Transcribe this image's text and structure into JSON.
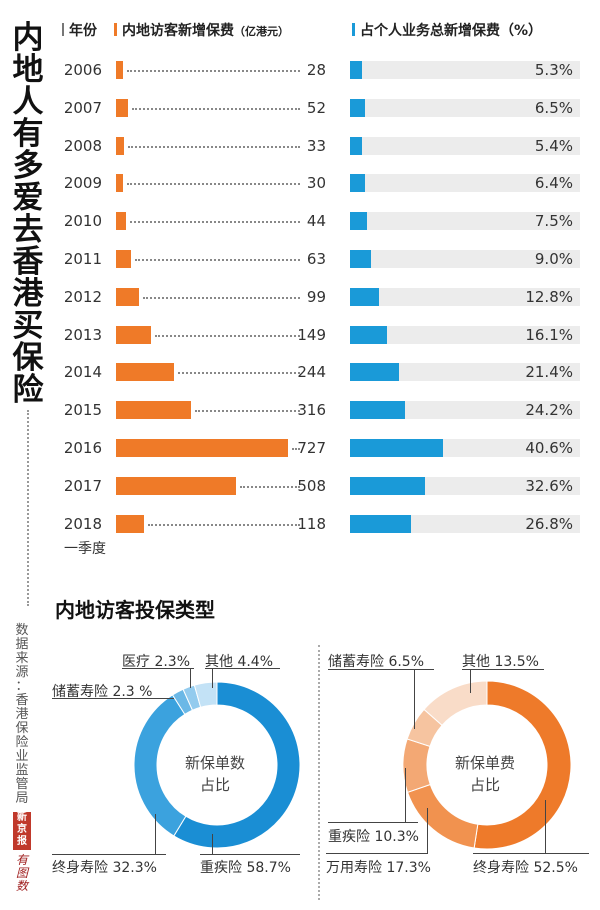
{
  "title": "内地人有多爱去香港买保险",
  "header": {
    "year_label": "年份",
    "premium_label": "内地访客新增保费",
    "premium_unit": "（亿港元）",
    "share_label": "占个人业务总新增保费（%）"
  },
  "colors": {
    "orange": "#ef7a28",
    "blue": "#1a9ad8",
    "track": "#ececec"
  },
  "chart_data": [
    {
      "type": "bar",
      "orientation": "horizontal",
      "categories": [
        "2006",
        "2007",
        "2008",
        "2009",
        "2010",
        "2011",
        "2012",
        "2013",
        "2014",
        "2015",
        "2016",
        "2017",
        "2018"
      ],
      "category_note": "一季度",
      "title": "内地访客新增保费（亿港元）",
      "values": [
        28,
        52,
        33,
        30,
        44,
        63,
        99,
        149,
        244,
        316,
        727,
        508,
        118
      ],
      "value_labels": [
        "28",
        "52",
        "33",
        "30",
        "44",
        "63",
        "99",
        "149",
        "244",
        "316",
        "727",
        "508",
        "118"
      ],
      "color": "#ef7a28"
    },
    {
      "type": "bar",
      "orientation": "horizontal",
      "categories": [
        "2006",
        "2007",
        "2008",
        "2009",
        "2010",
        "2011",
        "2012",
        "2013",
        "2014",
        "2015",
        "2016",
        "2017",
        "2018"
      ],
      "title": "占个人业务总新增保费（%）",
      "values": [
        5.3,
        6.5,
        5.4,
        6.4,
        7.5,
        9.0,
        12.8,
        16.1,
        21.4,
        24.2,
        40.6,
        32.6,
        26.8
      ],
      "value_labels": [
        "5.3%",
        "6.5%",
        "5.4%",
        "6.4%",
        "7.5%",
        "9.0%",
        "12.8%",
        "16.1%",
        "21.4%",
        "24.2%",
        "40.6%",
        "32.6%",
        "26.8%"
      ],
      "xlim": [
        0,
        100
      ],
      "color": "#1a9ad8"
    },
    {
      "type": "pie",
      "title": "新保单数占比",
      "title_lines": [
        "新保单数",
        "占比"
      ],
      "slices": [
        {
          "name": "重疾险",
          "value": 58.7,
          "label": "重疾险 58.7%",
          "color": "#1a8ed4"
        },
        {
          "name": "终身寿险",
          "value": 32.3,
          "label": "终身寿险 32.3%",
          "color": "#3ba2de"
        },
        {
          "name": "储蓄寿险",
          "value": 2.3,
          "label": "储蓄寿险 2.3 %",
          "color": "#6bb8e6"
        },
        {
          "name": "医疗",
          "value": 2.3,
          "label": "医疗 2.3%",
          "color": "#93cbee"
        },
        {
          "name": "其他",
          "value": 4.4,
          "label": "其他 4.4%",
          "color": "#c3e2f6"
        }
      ]
    },
    {
      "type": "pie",
      "title": "新保单费占比",
      "title_lines": [
        "新保单费",
        "占比"
      ],
      "slices": [
        {
          "name": "终身寿险",
          "value": 52.5,
          "label": "终身寿险 52.5%",
          "color": "#ee7a2a"
        },
        {
          "name": "万用寿险",
          "value": 17.3,
          "label": "万用寿险 17.3%",
          "color": "#f1924f"
        },
        {
          "name": "重疾险",
          "value": 10.3,
          "label": "重疾险 10.3%",
          "color": "#f3a874"
        },
        {
          "name": "储蓄寿险",
          "value": 6.5,
          "label": "储蓄寿险 6.5%",
          "color": "#f6c4a0"
        },
        {
          "name": "其他",
          "value": 13.5,
          "label": "其他 13.5%",
          "color": "#f9dcc8"
        }
      ]
    }
  ],
  "section_title": "内地访客投保类型",
  "source": "数据来源：香港保险业监管局",
  "logo": "新京报",
  "signature": "有图数"
}
